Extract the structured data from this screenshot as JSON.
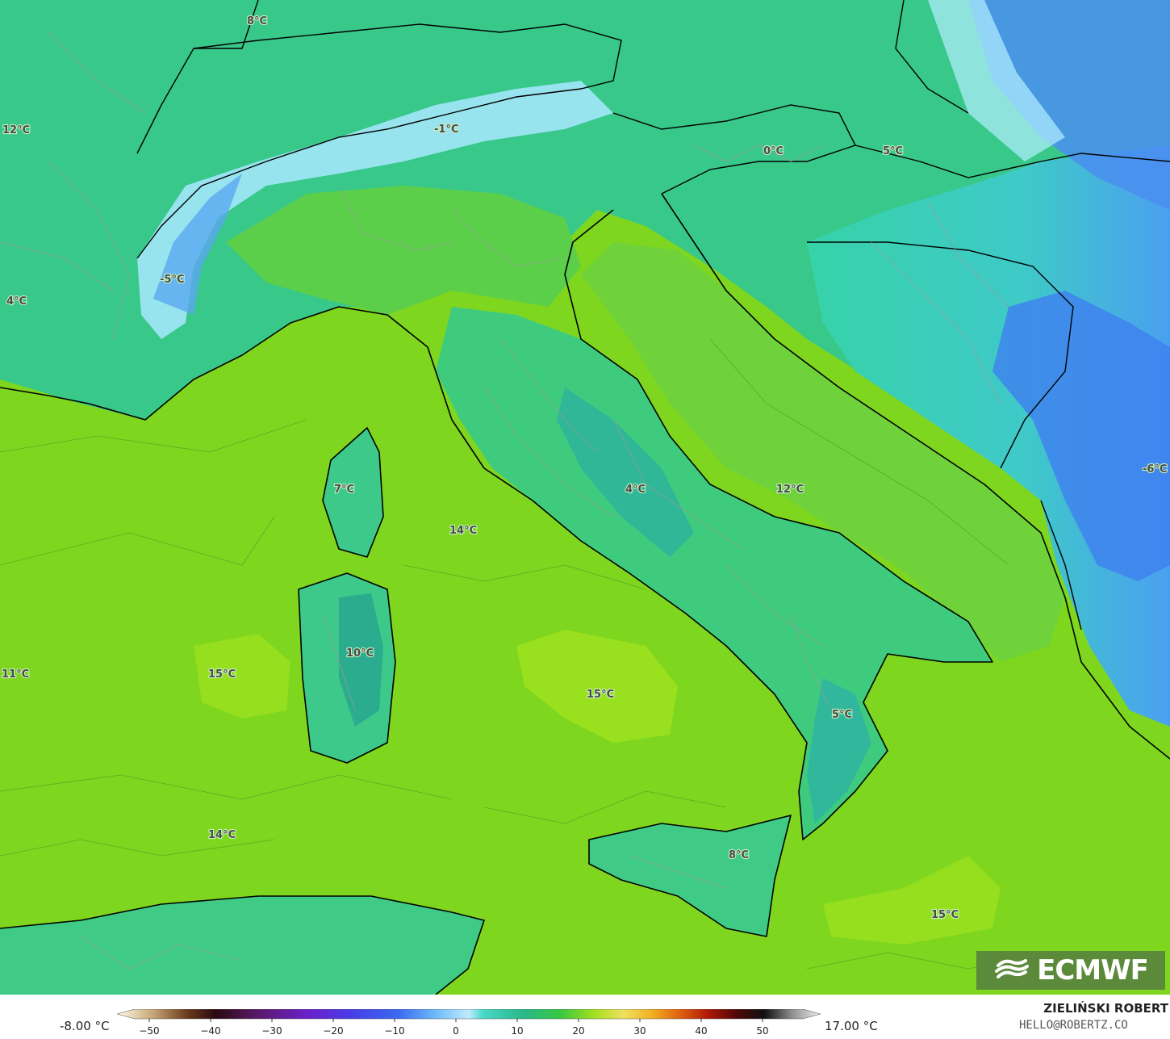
{
  "map": {
    "labels": [
      {
        "text": "8°C"
      },
      {
        "text": "12°C"
      },
      {
        "text": "-1°C"
      },
      {
        "text": "0°C"
      },
      {
        "text": "5°C"
      },
      {
        "text": "-5°C"
      },
      {
        "text": "4°C"
      },
      {
        "text": "7°C"
      },
      {
        "text": "14°C"
      },
      {
        "text": "4°C"
      },
      {
        "text": "12°C"
      },
      {
        "text": "-6°C"
      },
      {
        "text": "10°C"
      },
      {
        "text": "11°C"
      },
      {
        "text": "15°C"
      },
      {
        "text": "15°C"
      },
      {
        "text": "5°C"
      },
      {
        "text": "14°C"
      },
      {
        "text": "8°C"
      },
      {
        "text": "15°C"
      }
    ]
  },
  "logo": {
    "text": "ECMWF"
  },
  "legend": {
    "min_label": "-8.00 °C",
    "max_label": "17.00 °C",
    "ticks": [
      "−50",
      "−40",
      "−30",
      "−20",
      "−10",
      "0",
      "10",
      "20",
      "30",
      "40",
      "50"
    ]
  },
  "credit": {
    "name": "ZIELIŃSKI ROBERT",
    "email": "HELLO@ROBERTZ.CO"
  }
}
